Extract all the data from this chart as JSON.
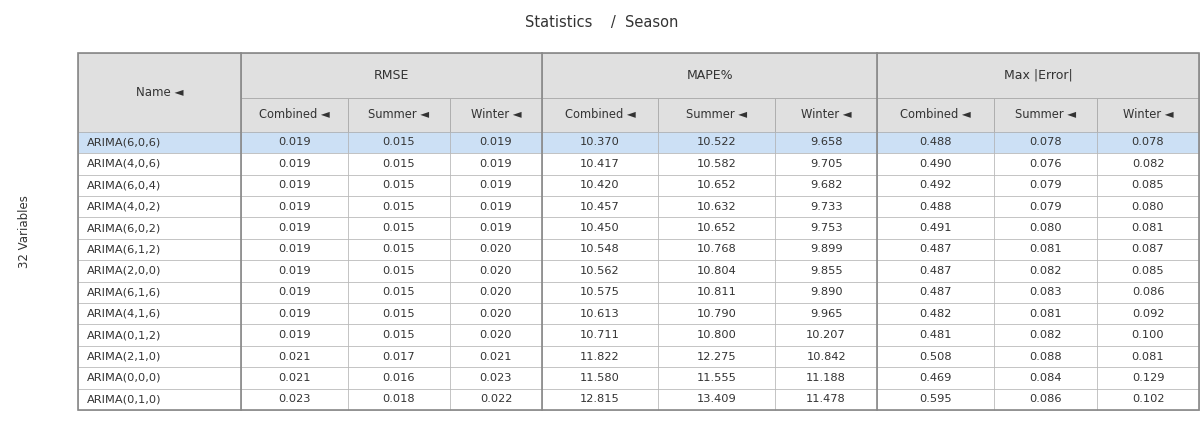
{
  "title": "Statistics    /  Season",
  "ylabel": "32 Variables",
  "col_groups": [
    "RMSE",
    "MAPE%",
    "Max |Error|"
  ],
  "sub_cols": [
    "Combined",
    "Summer",
    "Winter"
  ],
  "row_names": [
    "ARIMA(6,0,6)",
    "ARIMA(4,0,6)",
    "ARIMA(6,0,4)",
    "ARIMA(4,0,2)",
    "ARIMA(6,0,2)",
    "ARIMA(6,1,2)",
    "ARIMA(2,0,0)",
    "ARIMA(6,1,6)",
    "ARIMA(4,1,6)",
    "ARIMA(0,1,2)",
    "ARIMA(2,1,0)",
    "ARIMA(0,0,0)",
    "ARIMA(0,1,0)"
  ],
  "data": [
    [
      0.019,
      0.015,
      0.019,
      10.37,
      10.522,
      9.658,
      0.488,
      0.078,
      0.078
    ],
    [
      0.019,
      0.015,
      0.019,
      10.417,
      10.582,
      9.705,
      0.49,
      0.076,
      0.082
    ],
    [
      0.019,
      0.015,
      0.019,
      10.42,
      10.652,
      9.682,
      0.492,
      0.079,
      0.085
    ],
    [
      0.019,
      0.015,
      0.019,
      10.457,
      10.632,
      9.733,
      0.488,
      0.079,
      0.08
    ],
    [
      0.019,
      0.015,
      0.019,
      10.45,
      10.652,
      9.753,
      0.491,
      0.08,
      0.081
    ],
    [
      0.019,
      0.015,
      0.02,
      10.548,
      10.768,
      9.899,
      0.487,
      0.081,
      0.087
    ],
    [
      0.019,
      0.015,
      0.02,
      10.562,
      10.804,
      9.855,
      0.487,
      0.082,
      0.085
    ],
    [
      0.019,
      0.015,
      0.02,
      10.575,
      10.811,
      9.89,
      0.487,
      0.083,
      0.086
    ],
    [
      0.019,
      0.015,
      0.02,
      10.613,
      10.79,
      9.965,
      0.482,
      0.081,
      0.092
    ],
    [
      0.019,
      0.015,
      0.02,
      10.711,
      10.8,
      10.207,
      0.481,
      0.082,
      0.1
    ],
    [
      0.021,
      0.017,
      0.021,
      11.822,
      12.275,
      10.842,
      0.508,
      0.088,
      0.081
    ],
    [
      0.021,
      0.016,
      0.023,
      11.58,
      11.555,
      11.188,
      0.469,
      0.084,
      0.129
    ],
    [
      0.023,
      0.018,
      0.022,
      12.815,
      13.409,
      11.478,
      0.595,
      0.086,
      0.102
    ]
  ],
  "highlight_row": 0,
  "highlight_color": "#cce0f5",
  "header_bg": "#e0e0e0",
  "border_color": "#aaaaaa",
  "text_color": "#333333",
  "bg_white": "#ffffff",
  "col_decimals": [
    3,
    3,
    3,
    3,
    3,
    3,
    3,
    3,
    3
  ]
}
